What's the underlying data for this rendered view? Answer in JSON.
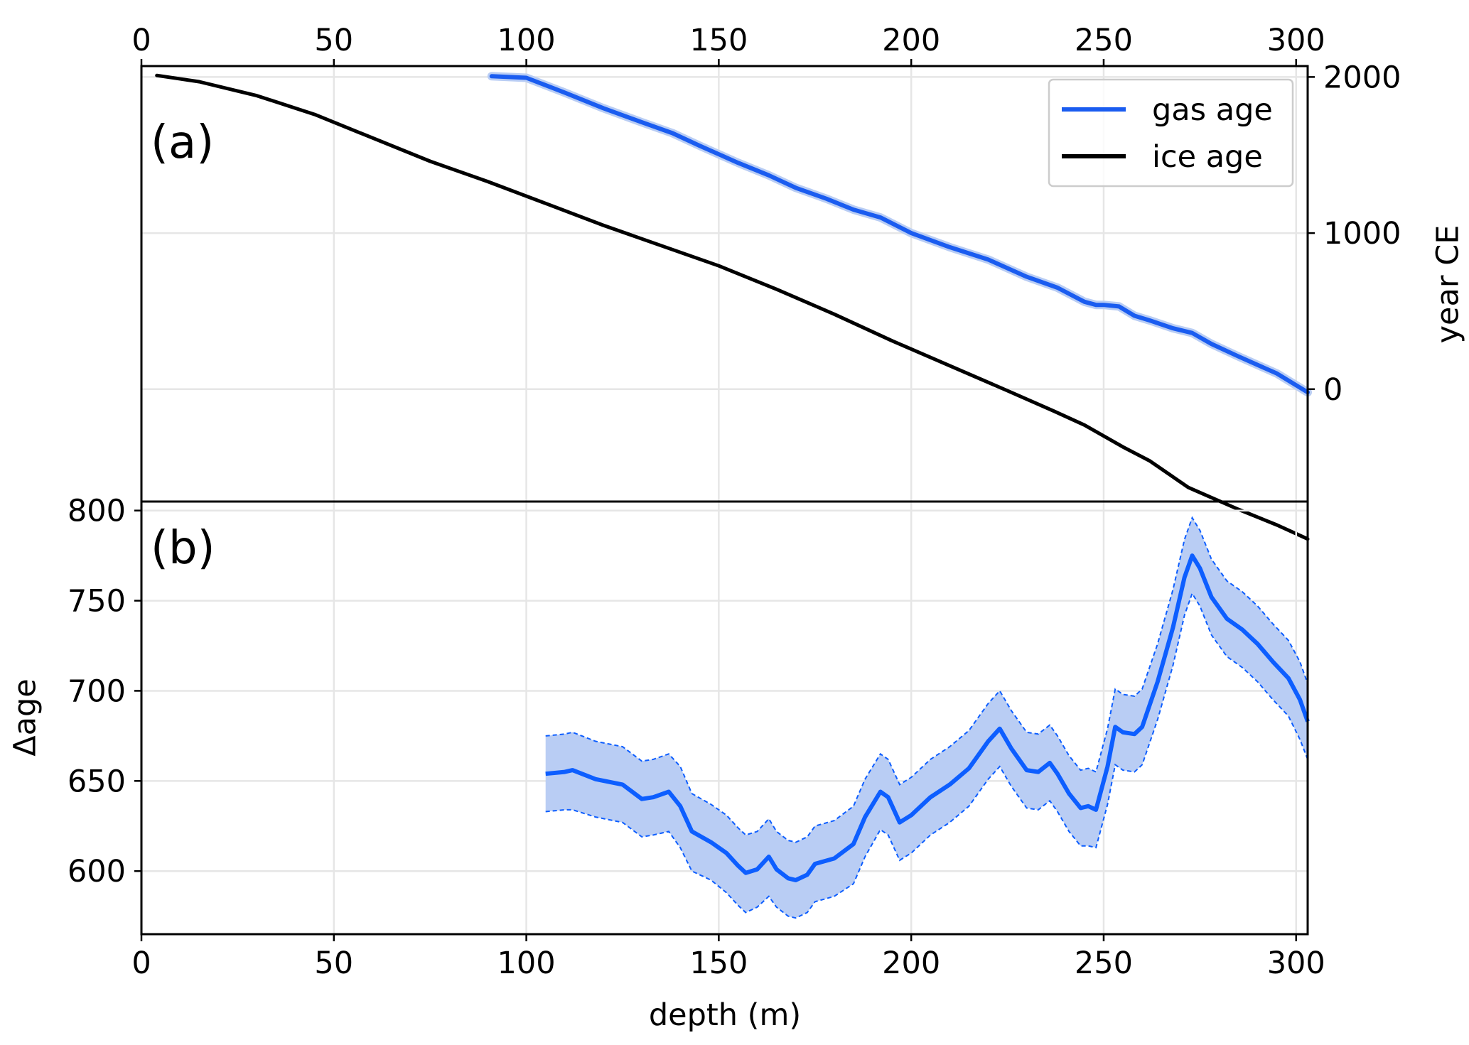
{
  "chart_data": [
    {
      "panel": "(a)",
      "type": "line",
      "title": "",
      "xlabel": "",
      "ylabel": "year CE",
      "xlim": [
        0,
        303
      ],
      "ylim": [
        -720,
        2070
      ],
      "xticks": [
        0,
        50,
        100,
        150,
        200,
        250,
        300
      ],
      "yticks": [
        0,
        1000,
        2000
      ],
      "y_axis_side": "right",
      "x_axis_side": "top",
      "grid": true,
      "legend": "top-right",
      "series": [
        {
          "name": "gas age",
          "color": "#1a5cf0",
          "x": [
            91,
            100,
            110,
            120,
            130,
            138,
            145,
            155,
            163,
            170,
            178,
            185,
            192,
            200,
            210,
            220,
            230,
            238,
            245,
            248,
            250,
            254,
            258,
            262,
            268,
            273,
            278,
            285,
            295,
            303
          ],
          "y": [
            2005,
            1995,
            1900,
            1800,
            1710,
            1640,
            1560,
            1450,
            1370,
            1290,
            1220,
            1150,
            1100,
            1000,
            910,
            830,
            720,
            650,
            560,
            540,
            540,
            530,
            470,
            440,
            390,
            360,
            290,
            210,
            100,
            -20
          ]
        },
        {
          "name": "ice age",
          "color": "#000000",
          "x": [
            4,
            15,
            30,
            45,
            60,
            75,
            90,
            105,
            120,
            135,
            150,
            165,
            180,
            195,
            210,
            225,
            237,
            245,
            255,
            262,
            272,
            285,
            295,
            303
          ],
          "y": [
            2010,
            1970,
            1880,
            1760,
            1610,
            1460,
            1330,
            1190,
            1050,
            920,
            790,
            640,
            480,
            310,
            150,
            -10,
            -140,
            -230,
            -370,
            -460,
            -630,
            -770,
            -870,
            -960
          ]
        }
      ]
    },
    {
      "panel": "(b)",
      "type": "line",
      "title": "",
      "xlabel": "depth (m)",
      "ylabel": "Δage",
      "xlim": [
        0,
        303
      ],
      "ylim": [
        565,
        805
      ],
      "xticks": [
        0,
        50,
        100,
        150,
        200,
        250,
        300
      ],
      "yticks": [
        600,
        650,
        700,
        750,
        800
      ],
      "grid": true,
      "series": [
        {
          "color": "#0d5eff",
          "band_color": "#b9cdf4",
          "x": [
            105,
            110,
            112,
            118,
            125,
            130,
            133,
            137,
            140,
            143,
            148,
            152,
            155,
            157,
            160,
            163,
            165,
            168,
            170,
            173,
            175,
            180,
            185,
            188,
            192,
            194,
            197,
            200,
            205,
            210,
            215,
            220,
            223,
            226,
            230,
            233,
            236,
            238,
            241,
            244,
            246,
            248,
            251,
            253,
            255,
            258,
            260,
            264,
            268,
            271,
            273,
            275,
            278,
            282,
            286,
            290,
            294,
            298,
            301,
            303
          ],
          "y": [
            654,
            655,
            656,
            651,
            648,
            640,
            641,
            644,
            636,
            622,
            616,
            610,
            603,
            599,
            601,
            608,
            601,
            596,
            595,
            598,
            604,
            607,
            615,
            630,
            644,
            641,
            627,
            631,
            641,
            648,
            657,
            672,
            679,
            668,
            656,
            655,
            660,
            654,
            643,
            635,
            636,
            634,
            658,
            680,
            677,
            676,
            680,
            705,
            735,
            763,
            775,
            768,
            752,
            740,
            734,
            726,
            716,
            707,
            695,
            683
          ],
          "lower": [
            633,
            634,
            634,
            630,
            627,
            619,
            620,
            622,
            613,
            600,
            595,
            588,
            581,
            577,
            580,
            586,
            580,
            575,
            574,
            577,
            583,
            586,
            593,
            608,
            623,
            620,
            606,
            610,
            620,
            627,
            636,
            651,
            658,
            647,
            635,
            634,
            639,
            633,
            622,
            614,
            614,
            613,
            637,
            659,
            656,
            655,
            659,
            684,
            714,
            742,
            754,
            747,
            731,
            719,
            713,
            705,
            695,
            686,
            673,
            662
          ],
          "upper": [
            675,
            676,
            677,
            672,
            669,
            661,
            662,
            665,
            658,
            643,
            637,
            631,
            624,
            620,
            622,
            629,
            622,
            617,
            616,
            619,
            625,
            628,
            636,
            651,
            665,
            662,
            648,
            652,
            662,
            669,
            678,
            693,
            700,
            689,
            677,
            676,
            681,
            675,
            664,
            656,
            657,
            655,
            679,
            701,
            698,
            697,
            701,
            726,
            756,
            784,
            796,
            789,
            773,
            761,
            755,
            747,
            737,
            728,
            716,
            704
          ]
        }
      ]
    }
  ]
}
